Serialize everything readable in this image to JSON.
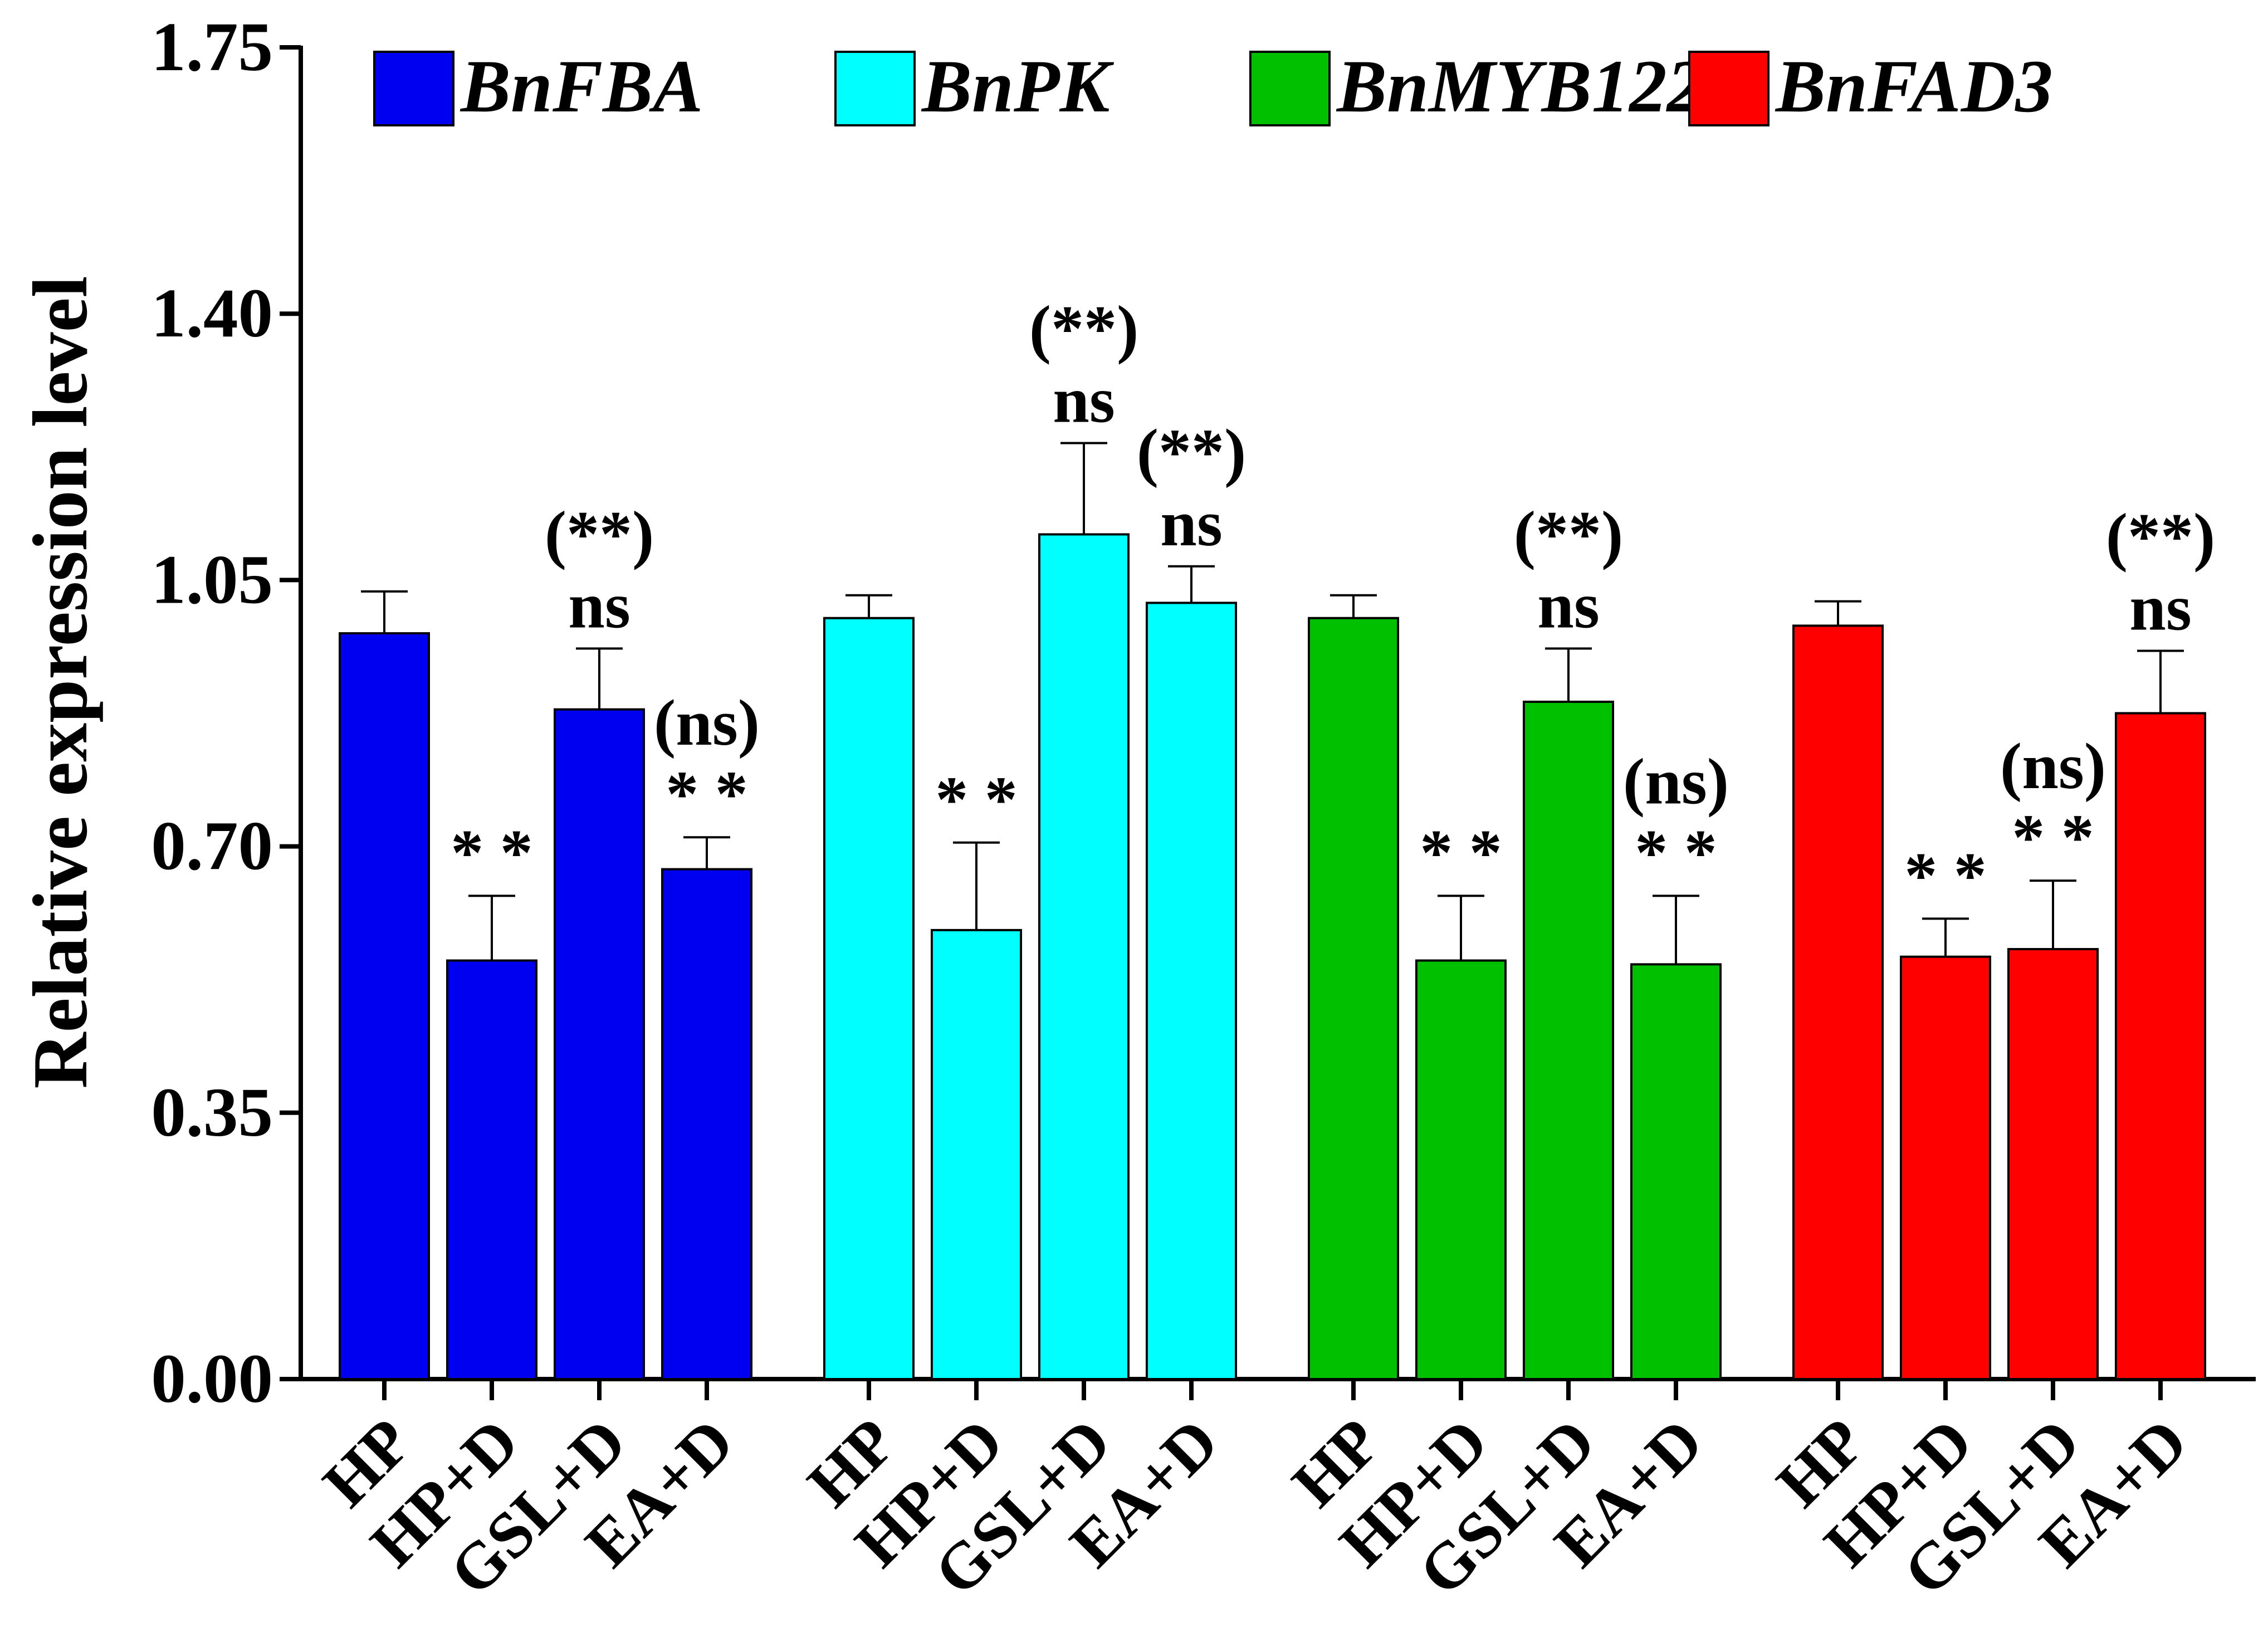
{
  "chart_data": {
    "type": "bar",
    "title": "",
    "xlabel": "",
    "ylabel": "Relative expression level",
    "ylim": [
      0,
      1.75
    ],
    "yticks": [
      "0.00",
      "0.35",
      "0.70",
      "1.05",
      "1.40",
      "1.75"
    ],
    "legend_position": "top",
    "categories": [
      "HP",
      "HP+D",
      "GSL+D",
      "EA+D"
    ],
    "series": [
      {
        "name": "BnFBA",
        "color": "#0000f0",
        "values": [
          0.98,
          0.55,
          0.88,
          0.67
        ],
        "errors": [
          0.055,
          0.085,
          0.08,
          0.042
        ],
        "annotations": [
          [],
          [
            "* *"
          ],
          [
            "(**)",
            "ns"
          ],
          [
            "(ns)",
            "* *"
          ]
        ]
      },
      {
        "name": "BnPK",
        "color": "#00ffff",
        "values": [
          1.0,
          0.59,
          1.11,
          1.02
        ],
        "errors": [
          0.03,
          0.115,
          0.12,
          0.048
        ],
        "annotations": [
          [],
          [
            "* *"
          ],
          [
            "(**)",
            "ns"
          ],
          [
            "(**)",
            "ns"
          ]
        ]
      },
      {
        "name": "BnMYB122",
        "color": "#00c000",
        "values": [
          1.0,
          0.55,
          0.89,
          0.545
        ],
        "errors": [
          0.03,
          0.085,
          0.07,
          0.09
        ],
        "annotations": [
          [],
          [
            "* *"
          ],
          [
            "(**)",
            "ns"
          ],
          [
            "(ns)",
            "* *"
          ]
        ]
      },
      {
        "name": "BnFAD3",
        "color": "#ff0000",
        "values": [
          0.99,
          0.555,
          0.565,
          0.875
        ],
        "errors": [
          0.032,
          0.05,
          0.09,
          0.082
        ],
        "annotations": [
          [],
          [
            "* *"
          ],
          [
            "(ns)",
            "* *"
          ],
          [
            "(**)",
            "ns"
          ]
        ]
      }
    ]
  }
}
